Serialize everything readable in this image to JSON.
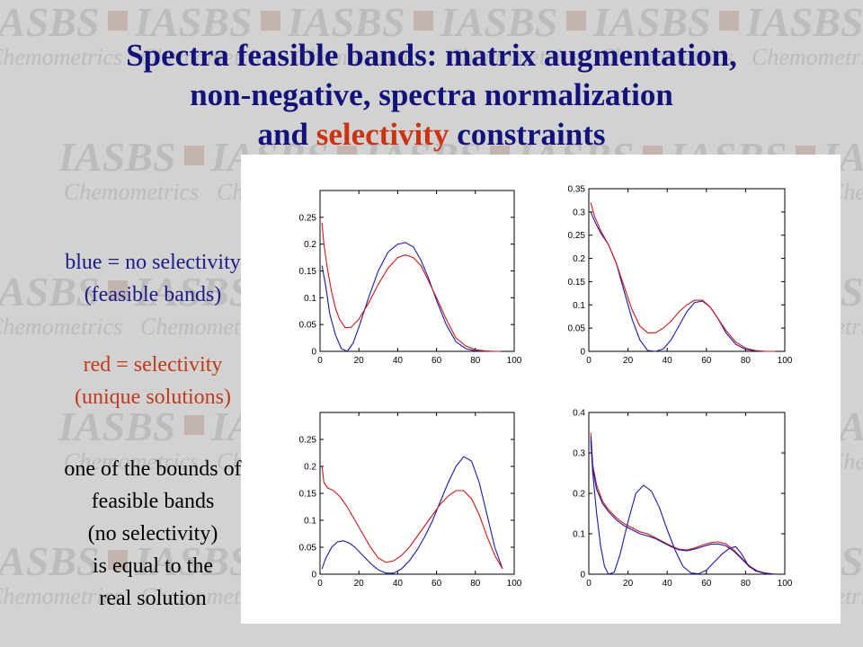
{
  "title": {
    "line1": "Spectra feasible bands: matrix augmentation,",
    "line2": "non-negative, spectra normalization",
    "line3_pre": "and ",
    "line3_highlight": "selectivity",
    "line3_post": " constraints"
  },
  "watermark": {
    "brand": "IASBS",
    "sub": "Chemometrics"
  },
  "notes": {
    "blue": [
      "blue = no selectivity",
      "(feasible bands)"
    ],
    "red": [
      "red = selectivity",
      "(unique solutions)"
    ],
    "black": [
      "one of the bounds of",
      "feasible bands",
      "(no selectivity)",
      "is equal to the",
      "real solution"
    ]
  },
  "colors": {
    "title": "#12127a",
    "highlight": "#cc3311",
    "blue_series": "#1a1aa8",
    "red_series": "#d01818",
    "blue_text": "#1c1c88",
    "red_text": "#c03a1a"
  },
  "chart_data": [
    {
      "type": "line",
      "xlim": [
        0,
        100
      ],
      "ylim": [
        0,
        0.3
      ],
      "xticks": [
        0,
        20,
        40,
        60,
        80,
        100
      ],
      "yticks": [
        0,
        0.05,
        0.1,
        0.15,
        0.2,
        0.25
      ],
      "ytick_labels": [
        "0",
        "0.05",
        "0.1",
        "0.15",
        "0.2",
        "0.25"
      ],
      "series": [
        {
          "color": "blue",
          "x": [
            1,
            3,
            5,
            8,
            11,
            14,
            17,
            20,
            25,
            30,
            35,
            40,
            44,
            48,
            52,
            56,
            60,
            65,
            70,
            75,
            80,
            85,
            90,
            93
          ],
          "y": [
            0.16,
            0.12,
            0.07,
            0.03,
            0.005,
            0,
            0.015,
            0.045,
            0.1,
            0.15,
            0.185,
            0.2,
            0.203,
            0.195,
            0.17,
            0.135,
            0.095,
            0.05,
            0.018,
            0.005,
            0.001,
            0,
            0,
            0
          ]
        },
        {
          "color": "red",
          "x": [
            1,
            2,
            4,
            6,
            8,
            10,
            13,
            16,
            20,
            25,
            30,
            35,
            40,
            44,
            48,
            52,
            56,
            60,
            65,
            70,
            75,
            80,
            85,
            90,
            93
          ],
          "y": [
            0.24,
            0.2,
            0.15,
            0.11,
            0.08,
            0.06,
            0.044,
            0.045,
            0.06,
            0.09,
            0.125,
            0.155,
            0.175,
            0.18,
            0.175,
            0.16,
            0.13,
            0.1,
            0.06,
            0.025,
            0.01,
            0.003,
            0.001,
            0,
            0
          ]
        }
      ]
    },
    {
      "type": "line",
      "xlim": [
        0,
        100
      ],
      "ylim": [
        0,
        0.35
      ],
      "xticks": [
        0,
        20,
        40,
        60,
        80,
        100
      ],
      "yticks": [
        0,
        0.05,
        0.1,
        0.15,
        0.2,
        0.25,
        0.3,
        0.35
      ],
      "ytick_labels": [
        "0",
        "0.05",
        "0.1",
        "0.15",
        "0.2",
        "0.25",
        "0.3",
        "0.35"
      ],
      "series": [
        {
          "color": "blue",
          "x": [
            1,
            3,
            6,
            10,
            14,
            18,
            22,
            26,
            30,
            34,
            38,
            42,
            46,
            50,
            54,
            58,
            62,
            66,
            70,
            75,
            80,
            85,
            90,
            95
          ],
          "y": [
            0.3,
            0.28,
            0.255,
            0.23,
            0.19,
            0.13,
            0.07,
            0.025,
            0.002,
            0,
            0.005,
            0.025,
            0.055,
            0.085,
            0.105,
            0.108,
            0.095,
            0.07,
            0.04,
            0.015,
            0.004,
            0.001,
            0,
            0
          ]
        },
        {
          "color": "red",
          "x": [
            1,
            3,
            6,
            10,
            14,
            18,
            22,
            26,
            30,
            34,
            38,
            42,
            46,
            50,
            54,
            58,
            62,
            66,
            70,
            75,
            80,
            85,
            90,
            95
          ],
          "y": [
            0.32,
            0.29,
            0.26,
            0.23,
            0.19,
            0.14,
            0.09,
            0.055,
            0.04,
            0.04,
            0.05,
            0.065,
            0.085,
            0.1,
            0.11,
            0.11,
            0.095,
            0.07,
            0.045,
            0.02,
            0.007,
            0.002,
            0,
            0
          ]
        }
      ]
    },
    {
      "type": "line",
      "xlim": [
        0,
        100
      ],
      "ylim": [
        0,
        0.3
      ],
      "xticks": [
        0,
        20,
        40,
        60,
        80,
        100
      ],
      "yticks": [
        0,
        0.05,
        0.1,
        0.15,
        0.2,
        0.25
      ],
      "ytick_labels": [
        "0",
        "0.05",
        "0.1",
        "0.15",
        "0.2",
        "0.25"
      ],
      "series": [
        {
          "color": "blue",
          "x": [
            1,
            3,
            6,
            9,
            12,
            15,
            18,
            22,
            26,
            30,
            34,
            38,
            42,
            46,
            50,
            54,
            58,
            62,
            66,
            70,
            74,
            78,
            82,
            86,
            90,
            94
          ],
          "y": [
            0.01,
            0.03,
            0.05,
            0.06,
            0.062,
            0.058,
            0.05,
            0.035,
            0.02,
            0.008,
            0.002,
            0.002,
            0.01,
            0.025,
            0.045,
            0.07,
            0.1,
            0.135,
            0.17,
            0.2,
            0.218,
            0.21,
            0.17,
            0.11,
            0.05,
            0.01
          ]
        },
        {
          "color": "red",
          "x": [
            1,
            2,
            4,
            7,
            10,
            14,
            18,
            22,
            26,
            30,
            34,
            38,
            42,
            46,
            50,
            54,
            58,
            62,
            66,
            70,
            74,
            78,
            82,
            86,
            90,
            94
          ],
          "y": [
            0.2,
            0.17,
            0.16,
            0.155,
            0.145,
            0.125,
            0.1,
            0.075,
            0.05,
            0.03,
            0.022,
            0.025,
            0.035,
            0.05,
            0.07,
            0.09,
            0.11,
            0.13,
            0.145,
            0.155,
            0.155,
            0.14,
            0.11,
            0.07,
            0.035,
            0.01
          ]
        }
      ]
    },
    {
      "type": "line",
      "xlim": [
        0,
        100
      ],
      "ylim": [
        0,
        0.4
      ],
      "xticks": [
        0,
        20,
        40,
        60,
        80,
        100
      ],
      "yticks": [
        0,
        0.1,
        0.2,
        0.3,
        0.4
      ],
      "ytick_labels": [
        "0",
        "0.1",
        "0.2",
        "0.3",
        "0.4"
      ],
      "series": [
        {
          "color": "blue",
          "x": [
            1,
            2,
            4,
            6,
            8,
            10,
            13,
            16,
            20,
            24,
            28,
            32,
            36,
            40,
            44,
            48,
            52,
            56,
            60,
            64,
            68,
            72,
            75,
            78,
            81,
            85,
            90,
            95
          ],
          "y": [
            0.33,
            0.25,
            0.15,
            0.07,
            0.02,
            0,
            0.005,
            0.05,
            0.13,
            0.2,
            0.22,
            0.205,
            0.165,
            0.11,
            0.06,
            0.02,
            0.003,
            0.001,
            0.01,
            0.03,
            0.05,
            0.065,
            0.068,
            0.05,
            0.025,
            0.008,
            0.002,
            0
          ]
        },
        {
          "color": "red",
          "x": [
            1,
            2,
            4,
            7,
            10,
            14,
            18,
            22,
            26,
            30,
            34,
            38,
            42,
            46,
            50,
            54,
            58,
            62,
            66,
            70,
            74,
            78,
            82,
            86,
            90,
            95
          ],
          "y": [
            0.35,
            0.27,
            0.22,
            0.18,
            0.16,
            0.14,
            0.125,
            0.115,
            0.105,
            0.1,
            0.09,
            0.08,
            0.07,
            0.062,
            0.06,
            0.065,
            0.072,
            0.078,
            0.08,
            0.075,
            0.06,
            0.04,
            0.02,
            0.008,
            0.003,
            0
          ]
        },
        {
          "color": "blue",
          "x": [
            1,
            2,
            4,
            7,
            10,
            14,
            18,
            22,
            26,
            30,
            34,
            38,
            42,
            46,
            50,
            54,
            58,
            62,
            66,
            70,
            74,
            78,
            82,
            86,
            90,
            95
          ],
          "y": [
            0.34,
            0.26,
            0.21,
            0.175,
            0.155,
            0.135,
            0.12,
            0.11,
            0.1,
            0.095,
            0.088,
            0.078,
            0.068,
            0.06,
            0.058,
            0.062,
            0.068,
            0.074,
            0.075,
            0.07,
            0.057,
            0.038,
            0.018,
            0.007,
            0.002,
            0
          ]
        }
      ]
    }
  ]
}
